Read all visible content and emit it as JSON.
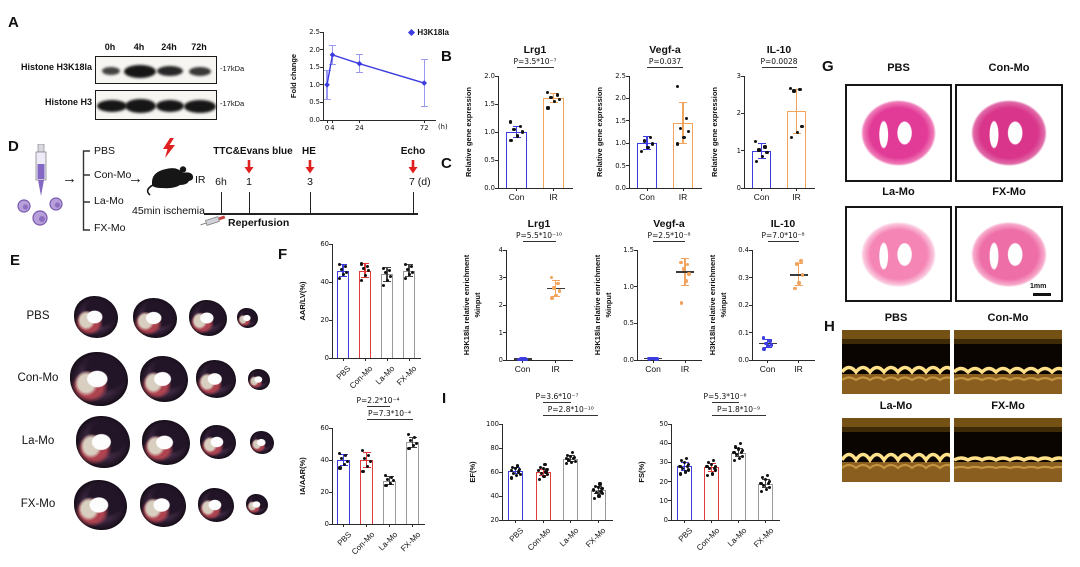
{
  "panels": {
    "A": {
      "label": "A",
      "blot": {
        "lanes": [
          "0h",
          "4h",
          "24h",
          "72h"
        ],
        "rows": [
          {
            "name": "Histone H3K18la",
            "kda": "-17kDa"
          },
          {
            "name": "Histone H3",
            "kda": "-17kDa"
          }
        ]
      }
    },
    "B": {
      "label": "B"
    },
    "C": {
      "label": "C"
    },
    "D": {
      "label": "D",
      "groups": [
        "PBS",
        "Con-Mo",
        "La-Mo",
        "FX-Mo"
      ],
      "ir": "IR",
      "six_h": "6h",
      "t1": "1",
      "t3": "3",
      "t7": "7 (d)",
      "ev1": "TTC&Evans blue",
      "ev2": "HE",
      "ev3": "Echo",
      "ischemia": "45min ischemia",
      "reperfusion": "Reperfusion"
    },
    "E": {
      "label": "E",
      "rows": [
        "PBS",
        "Con-Mo",
        "La-Mo",
        "FX-Mo"
      ]
    },
    "F": {
      "label": "F"
    },
    "G": {
      "label": "G",
      "items": [
        "PBS",
        "Con-Mo",
        "La-Mo",
        "FX-Mo"
      ],
      "scalebar": "1mm"
    },
    "H": {
      "label": "H",
      "items": [
        "PBS",
        "Con-Mo",
        "La-Mo",
        "FX-Mo"
      ]
    },
    "I": {
      "label": "I"
    }
  },
  "chart_data": [
    {
      "id": "fold",
      "type": "line",
      "ylabel": "Fold change",
      "legend": "H3K18la",
      "color": "#3b3be0",
      "x": [
        0,
        4,
        24,
        72
      ],
      "xticks": [
        "0",
        "4",
        "24",
        "72"
      ],
      "x_unit": "(h)",
      "xlim": [
        -3,
        80
      ],
      "values": [
        1.0,
        1.85,
        1.6,
        1.05
      ],
      "errors": [
        0.42,
        0.27,
        0.25,
        0.68
      ],
      "ylim": [
        0,
        2.5
      ],
      "yticks": [
        0,
        0.5,
        1,
        1.5,
        2,
        2.5
      ],
      "ytick_labels": [
        "0.0",
        "0.5",
        "1.0",
        "1.5",
        "2.0",
        "2.5"
      ]
    },
    {
      "id": "b-lrg1",
      "type": "bar",
      "title": "Lrg1",
      "ylabel": "Relative gene expression",
      "categories": [
        "Con",
        "IR"
      ],
      "bar_colors": [
        "#3c3cdf",
        "#f2a35c"
      ],
      "values": [
        1.0,
        1.6
      ],
      "errors": [
        0.1,
        0.08
      ],
      "points": [
        [
          0.85,
          0.93,
          1.0,
          1.04,
          1.1,
          1.18
        ],
        [
          1.43,
          1.55,
          1.58,
          1.62,
          1.66,
          1.7
        ]
      ],
      "ylim": [
        0,
        2
      ],
      "yticks": [
        0,
        0.5,
        1,
        1.5,
        2
      ],
      "ytick_labels": [
        "0.0",
        "0.5",
        "1.0",
        "1.5",
        "2.0"
      ],
      "p": [
        {
          "label": "P=3.5*10⁻⁷",
          "from": 0,
          "to": 1
        }
      ]
    },
    {
      "id": "b-vegfa",
      "type": "bar",
      "title": "Vegf-a",
      "ylabel": "Relative gene expression",
      "categories": [
        "Con",
        "IR"
      ],
      "bar_colors": [
        "#3c3cdf",
        "#f2a35c"
      ],
      "values": [
        1.0,
        1.45
      ],
      "errors": [
        0.15,
        0.45
      ],
      "points": [
        [
          0.82,
          0.9,
          0.98,
          1.05,
          1.12
        ],
        [
          0.98,
          1.12,
          1.26,
          1.32,
          1.55,
          2.27
        ]
      ],
      "ylim": [
        0,
        2.5
      ],
      "yticks": [
        0,
        0.5,
        1,
        1.5,
        2,
        2.5
      ],
      "ytick_labels": [
        "0.0",
        "0.5",
        "1.0",
        "1.5",
        "2.0",
        "2.5"
      ],
      "p": [
        {
          "label": "P=0.037",
          "from": 0,
          "to": 1
        }
      ]
    },
    {
      "id": "b-il10",
      "type": "bar",
      "title": "IL-10",
      "ylabel": "Relative gene expression",
      "categories": [
        "Con",
        "IR"
      ],
      "bar_colors": [
        "#3c3cdf",
        "#f2a35c"
      ],
      "values": [
        1.0,
        2.05
      ],
      "errors": [
        0.2,
        0.6
      ],
      "points": [
        [
          0.72,
          0.85,
          0.95,
          1.02,
          1.1,
          1.25
        ],
        [
          1.35,
          1.48,
          1.65,
          2.6,
          2.63,
          2.66
        ]
      ],
      "ylim": [
        0,
        3
      ],
      "yticks": [
        0,
        1,
        2,
        3
      ],
      "ytick_labels": [
        "0",
        "1",
        "2",
        "3"
      ],
      "p": [
        {
          "label": "P=0.0028",
          "from": 0,
          "to": 1
        }
      ]
    },
    {
      "id": "c-lrg1",
      "type": "scatter",
      "title": "Lrg1",
      "ylabel": "H3K18la relative enrichment",
      "ylabel2": "%input",
      "categories": [
        "Con",
        "IR"
      ],
      "group_colors": [
        "#3c3cdf",
        "#f2a35c"
      ],
      "points": [
        [
          0.02,
          0.03,
          0.02,
          0.04,
          0.03,
          0.02
        ],
        [
          2.25,
          2.35,
          2.5,
          2.62,
          2.78,
          3.0
        ]
      ],
      "means": [
        0.03,
        2.6
      ],
      "errors": [
        0.02,
        0.28
      ],
      "ylim": [
        0,
        4
      ],
      "yticks": [
        0,
        1,
        2,
        3,
        4
      ],
      "ytick_labels": [
        "0",
        "1",
        "2",
        "3",
        "4"
      ],
      "p": [
        {
          "label": "P=5.5*10⁻¹⁰",
          "from": 0,
          "to": 1
        }
      ]
    },
    {
      "id": "c-vegfa",
      "type": "scatter",
      "title": "Vegf-a",
      "ylabel": "H3K18la relative enrichment",
      "ylabel2": "%input",
      "categories": [
        "Con",
        "IR"
      ],
      "group_colors": [
        "#3c3cdf",
        "#f2a35c"
      ],
      "points": [
        [
          0.01,
          0.02,
          0.015,
          0.02,
          0.01,
          0.02
        ],
        [
          0.78,
          1.08,
          1.17,
          1.24,
          1.3,
          1.33
        ]
      ],
      "means": [
        0.02,
        1.2
      ],
      "errors": [
        0.015,
        0.18
      ],
      "ylim": [
        0,
        1.5
      ],
      "yticks": [
        0,
        0.5,
        1,
        1.5
      ],
      "ytick_labels": [
        "0.0",
        "0.5",
        "1.0",
        "1.5"
      ],
      "p": [
        {
          "label": "P=2.5*10⁻⁸",
          "from": 0,
          "to": 1
        }
      ]
    },
    {
      "id": "c-il10",
      "type": "scatter",
      "title": "IL-10",
      "ylabel": "H3K18la relative enrichment",
      "ylabel2": "%input",
      "categories": [
        "Con",
        "IR"
      ],
      "group_colors": [
        "#3c3cdf",
        "#f2a35c"
      ],
      "points": [
        [
          0.04,
          0.05,
          0.055,
          0.06,
          0.07,
          0.08
        ],
        [
          0.26,
          0.28,
          0.31,
          0.35,
          0.36
        ]
      ],
      "means": [
        0.06,
        0.31
      ],
      "errors": [
        0.015,
        0.04
      ],
      "ylim": [
        0,
        0.4
      ],
      "yticks": [
        0,
        0.1,
        0.2,
        0.3,
        0.4
      ],
      "ytick_labels": [
        "0.0",
        "0.1",
        "0.2",
        "0.3",
        "0.4"
      ],
      "p": [
        {
          "label": "P=7.0*10⁻⁸",
          "from": 0,
          "to": 1
        }
      ]
    },
    {
      "id": "f-aar",
      "type": "bar",
      "ylabel": "AAR/LV(%)",
      "rotate_labels": true,
      "categories": [
        "PBS",
        "Con-Mo",
        "La-Mo",
        "FX-Mo"
      ],
      "bar_colors": [
        "#3c3cdf",
        "#e03a3a",
        "#9a9a9a",
        "#9a9a9a"
      ],
      "values": [
        46,
        46,
        44,
        46
      ],
      "errors": [
        3,
        3.5,
        3.5,
        3
      ],
      "points": [
        [
          42,
          44,
          45,
          46.5,
          48,
          49
        ],
        [
          41,
          43.5,
          46,
          47,
          48,
          49.5
        ],
        [
          38,
          41,
          43,
          45,
          46,
          47
        ],
        [
          42,
          44,
          45,
          46.5,
          48,
          49
        ]
      ],
      "ylim": [
        0,
        60
      ],
      "yticks": [
        0,
        20,
        40,
        60
      ],
      "ytick_labels": [
        "0",
        "20",
        "40",
        "60"
      ]
    },
    {
      "id": "f-ia",
      "type": "bar",
      "ylabel": "IA/AAR(%)",
      "rotate_labels": true,
      "categories": [
        "PBS",
        "Con-Mo",
        "La-Mo",
        "FX-Mo"
      ],
      "bar_colors": [
        "#3c3cdf",
        "#e03a3a",
        "#9a9a9a",
        "#9a9a9a"
      ],
      "values": [
        40,
        40,
        27,
        51
      ],
      "errors": [
        3.5,
        4.5,
        2.5,
        3
      ],
      "points": [
        [
          35,
          37,
          39,
          41,
          43,
          44
        ],
        [
          33,
          36,
          39,
          41,
          43,
          46
        ],
        [
          24,
          25.5,
          27,
          28,
          29,
          30.5
        ],
        [
          47,
          49,
          50.5,
          52,
          54,
          56
        ]
      ],
      "ylim": [
        0,
        60
      ],
      "yticks": [
        0,
        20,
        40,
        60
      ],
      "ytick_labels": [
        "0",
        "20",
        "40",
        "60"
      ],
      "p": [
        {
          "label": "P=2.2*10⁻⁴",
          "from": 1,
          "to": 2
        },
        {
          "label": "P=7.3*10⁻⁴",
          "from": 1,
          "to": 3
        }
      ]
    },
    {
      "id": "i-ef",
      "type": "bar",
      "ylabel": "EF(%)",
      "rotate_labels": true,
      "categories": [
        "PBS",
        "Con-Mo",
        "La-Mo",
        "FX-Mo"
      ],
      "bar_colors": [
        "#3c3cdf",
        "#e03a3a",
        "#9a9a9a",
        "#9a9a9a"
      ],
      "values": [
        61,
        60,
        71,
        45
      ],
      "errors": [
        2.5,
        2.5,
        2.5,
        3
      ],
      "points": [
        [
          55,
          57,
          58,
          59,
          60,
          61,
          62,
          63,
          64,
          65
        ],
        [
          54,
          56,
          58,
          59,
          60,
          61,
          62,
          63,
          64,
          66
        ],
        [
          67,
          68,
          69,
          70,
          71,
          71,
          72,
          73,
          74,
          76
        ],
        [
          38,
          40,
          42,
          43,
          44,
          45,
          46,
          47,
          48,
          50
        ]
      ],
      "ylim": [
        20,
        100
      ],
      "yticks": [
        20,
        40,
        60,
        80,
        100
      ],
      "ytick_labels": [
        "20",
        "40",
        "60",
        "80",
        "100"
      ],
      "p": [
        {
          "label": "P=3.6*10⁻⁷",
          "from": 1,
          "to": 2
        },
        {
          "label": "P=2.8*10⁻¹⁰",
          "from": 1,
          "to": 3
        }
      ]
    },
    {
      "id": "i-fs",
      "type": "bar",
      "ylabel": "FS(%)",
      "rotate_labels": true,
      "categories": [
        "PBS",
        "Con-Mo",
        "La-Mo",
        "FX-Mo"
      ],
      "bar_colors": [
        "#3c3cdf",
        "#e03a3a",
        "#9a9a9a",
        "#9a9a9a"
      ],
      "values": [
        28,
        27.5,
        35,
        19
      ],
      "errors": [
        2,
        2,
        2,
        2
      ],
      "points": [
        [
          24,
          25,
          26,
          27,
          28,
          28,
          29,
          30,
          31,
          32
        ],
        [
          23,
          24,
          26,
          27,
          27,
          28,
          28,
          29,
          30,
          31
        ],
        [
          31,
          32,
          33,
          34,
          35,
          35,
          36,
          37,
          38,
          40
        ],
        [
          15,
          16,
          17,
          18,
          19,
          19,
          20,
          21,
          22,
          23
        ]
      ],
      "ylim": [
        0,
        50
      ],
      "yticks": [
        0,
        10,
        20,
        30,
        40,
        50
      ],
      "ytick_labels": [
        "0",
        "10",
        "20",
        "30",
        "40",
        "50"
      ],
      "p": [
        {
          "label": "P=5.3*10⁻⁶",
          "from": 1,
          "to": 2
        },
        {
          "label": "P=1.8*10⁻⁹",
          "from": 1,
          "to": 3
        }
      ]
    }
  ]
}
